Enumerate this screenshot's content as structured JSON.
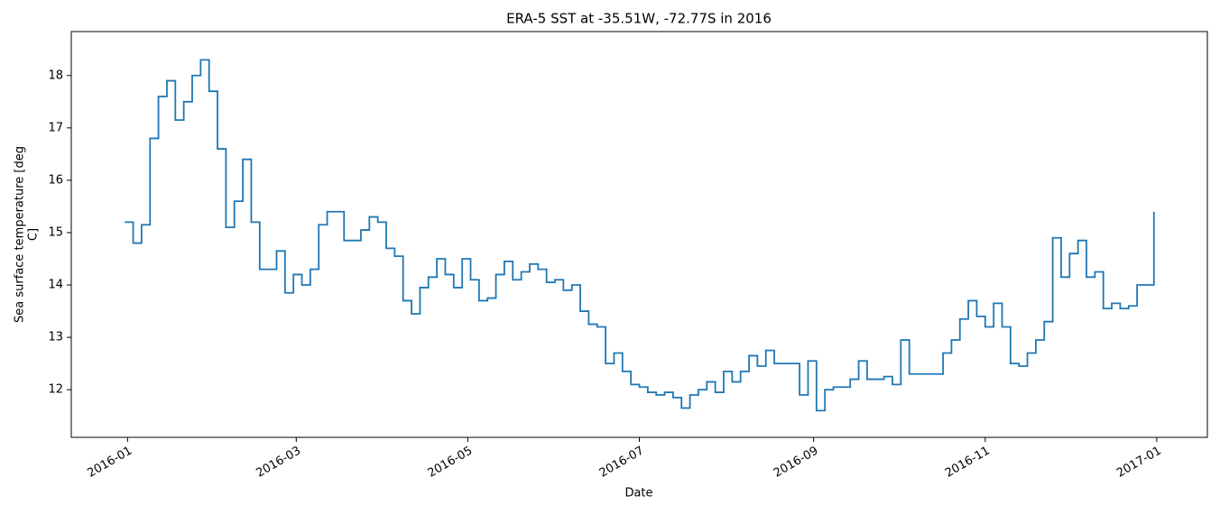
{
  "chart_data": {
    "type": "line",
    "title": "ERA-5 SST at -35.51W, -72.77S in 2016",
    "x_label": "Date",
    "y_label": [
      "Sea surface temperature [deg",
      "C]"
    ],
    "step": true,
    "color": "#1f77b4",
    "x": [
      "2015-12-31",
      "2016-01-03",
      "2016-01-06",
      "2016-01-09",
      "2016-01-12",
      "2016-01-15",
      "2016-01-18",
      "2016-01-21",
      "2016-01-24",
      "2016-01-27",
      "2016-01-30",
      "2016-02-02",
      "2016-02-05",
      "2016-02-08",
      "2016-02-11",
      "2016-02-14",
      "2016-02-17",
      "2016-02-20",
      "2016-02-23",
      "2016-02-26",
      "2016-02-29",
      "2016-03-03",
      "2016-03-06",
      "2016-03-09",
      "2016-03-12",
      "2016-03-15",
      "2016-03-18",
      "2016-03-21",
      "2016-03-24",
      "2016-03-27",
      "2016-03-30",
      "2016-04-02",
      "2016-04-05",
      "2016-04-08",
      "2016-04-11",
      "2016-04-14",
      "2016-04-17",
      "2016-04-20",
      "2016-04-23",
      "2016-04-26",
      "2016-04-29",
      "2016-05-02",
      "2016-05-05",
      "2016-05-08",
      "2016-05-11",
      "2016-05-14",
      "2016-05-17",
      "2016-05-20",
      "2016-05-23",
      "2016-05-26",
      "2016-05-29",
      "2016-06-01",
      "2016-06-04",
      "2016-06-07",
      "2016-06-10",
      "2016-06-13",
      "2016-06-16",
      "2016-06-19",
      "2016-06-22",
      "2016-06-25",
      "2016-06-28",
      "2016-07-01",
      "2016-07-04",
      "2016-07-07",
      "2016-07-10",
      "2016-07-13",
      "2016-07-16",
      "2016-07-19",
      "2016-07-22",
      "2016-07-25",
      "2016-07-28",
      "2016-07-31",
      "2016-08-03",
      "2016-08-06",
      "2016-08-09",
      "2016-08-12",
      "2016-08-15",
      "2016-08-18",
      "2016-08-21",
      "2016-08-24",
      "2016-08-27",
      "2016-08-30",
      "2016-09-02",
      "2016-09-05",
      "2016-09-08",
      "2016-09-11",
      "2016-09-14",
      "2016-09-17",
      "2016-09-20",
      "2016-09-23",
      "2016-09-26",
      "2016-09-29",
      "2016-10-02",
      "2016-10-05",
      "2016-10-08",
      "2016-10-11",
      "2016-10-14",
      "2016-10-17",
      "2016-10-20",
      "2016-10-23",
      "2016-10-26",
      "2016-10-29",
      "2016-11-01",
      "2016-11-04",
      "2016-11-07",
      "2016-11-10",
      "2016-11-13",
      "2016-11-16",
      "2016-11-19",
      "2016-11-22",
      "2016-11-25",
      "2016-11-28",
      "2016-12-01",
      "2016-12-04",
      "2016-12-07",
      "2016-12-10",
      "2016-12-13",
      "2016-12-16",
      "2016-12-19",
      "2016-12-22",
      "2016-12-25",
      "2016-12-28",
      "2016-12-31"
    ],
    "values": [
      15.2,
      14.8,
      15.15,
      16.8,
      17.6,
      17.9,
      17.15,
      17.5,
      18.0,
      18.3,
      17.7,
      16.6,
      15.1,
      15.6,
      16.4,
      15.2,
      14.3,
      14.3,
      14.65,
      13.85,
      14.2,
      14.0,
      14.3,
      15.15,
      15.4,
      15.4,
      14.85,
      14.85,
      15.05,
      15.3,
      15.2,
      14.7,
      14.55,
      13.7,
      13.45,
      13.95,
      14.15,
      14.5,
      14.2,
      13.95,
      14.5,
      14.1,
      13.7,
      13.75,
      14.2,
      14.45,
      14.1,
      14.25,
      14.4,
      14.3,
      14.05,
      14.1,
      13.9,
      14.0,
      13.5,
      13.25,
      13.2,
      12.5,
      12.7,
      12.35,
      12.1,
      12.05,
      11.95,
      11.9,
      11.95,
      11.85,
      11.65,
      11.9,
      12.0,
      12.15,
      11.95,
      12.35,
      12.15,
      12.35,
      12.65,
      12.45,
      12.75,
      12.5,
      12.5,
      12.5,
      11.9,
      12.55,
      11.6,
      12.0,
      12.05,
      12.05,
      12.2,
      12.55,
      12.2,
      12.2,
      12.25,
      12.1,
      12.95,
      12.3,
      12.3,
      12.3,
      12.3,
      12.7,
      12.95,
      13.35,
      13.7,
      13.4,
      13.2,
      13.65,
      13.2,
      12.5,
      12.45,
      12.7,
      12.95,
      13.3,
      14.9,
      14.15,
      14.6,
      14.85,
      14.15,
      14.25,
      13.55,
      13.65,
      13.55,
      13.6,
      14.0,
      14.0,
      15.4
    ],
    "xlim": [
      "2015-12-12",
      "2017-01-19"
    ],
    "xticks": [
      {
        "value": "2016-01-01",
        "label": "2016-01"
      },
      {
        "value": "2016-03-01",
        "label": "2016-03"
      },
      {
        "value": "2016-05-01",
        "label": "2016-05"
      },
      {
        "value": "2016-07-01",
        "label": "2016-07"
      },
      {
        "value": "2016-09-01",
        "label": "2016-09"
      },
      {
        "value": "2016-11-01",
        "label": "2016-11"
      },
      {
        "value": "2017-01-01",
        "label": "2017-01"
      }
    ],
    "ylim": [
      11.09,
      18.84
    ],
    "yticks": [
      12,
      13,
      14,
      15,
      16,
      17,
      18
    ],
    "grid": false
  }
}
